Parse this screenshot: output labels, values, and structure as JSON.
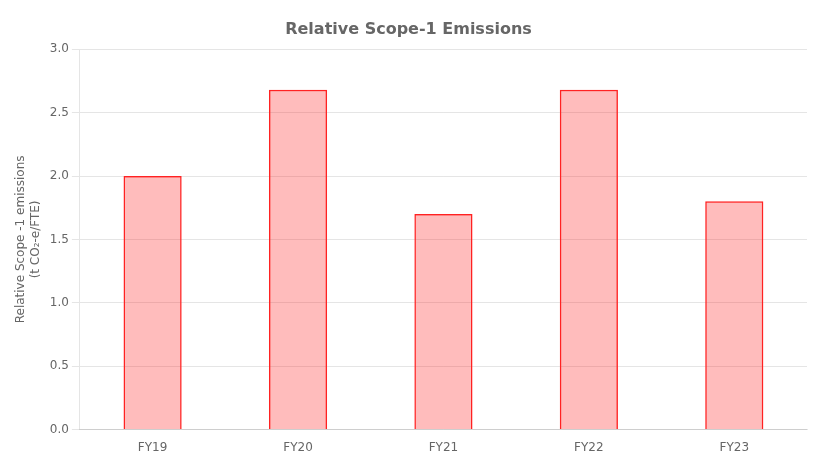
{
  "chart_data": {
    "type": "bar",
    "title": "Relative Scope-1 Emissions",
    "categories": [
      "FY19",
      "FY20",
      "FY21",
      "FY22",
      "FY23"
    ],
    "values": [
      2.0,
      2.68,
      1.7,
      2.68,
      1.8
    ],
    "color": "#FF2222",
    "ylabel": [
      "Relative Scope -1 emissions",
      "(t CO₂-e/FTE)"
    ],
    "ylim": [
      0.0,
      3.0
    ],
    "yticks": [
      {
        "value": 0.0,
        "label": "0.0"
      },
      0.5,
      {
        "value": 1.0,
        "label": "1.0"
      },
      1.5,
      {
        "value": 2.0,
        "label": "2.0"
      },
      2.5,
      {
        "value": 3.0,
        "label": "3.0"
      }
    ],
    "grid": true
  }
}
